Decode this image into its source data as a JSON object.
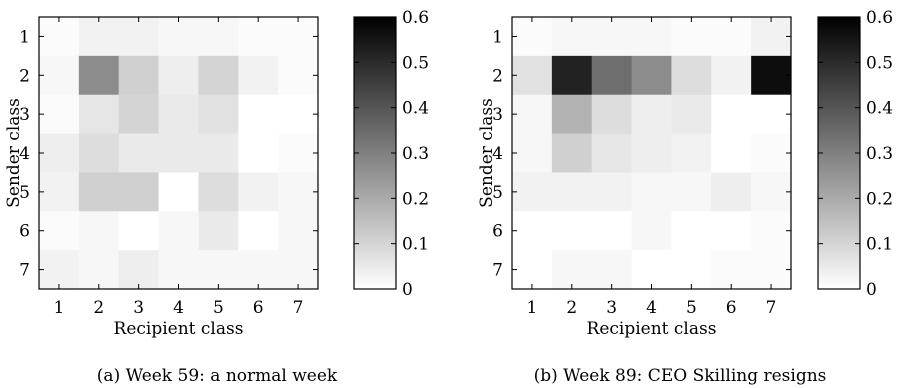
{
  "chart_data": [
    {
      "type": "heatmap",
      "caption": "(a) Week 59: a normal week",
      "xlabel": "Recipient class",
      "ylabel": "Sender class",
      "x": [
        "1",
        "2",
        "3",
        "4",
        "5",
        "6",
        "7"
      ],
      "y": [
        "1",
        "2",
        "3",
        "4",
        "5",
        "6",
        "7"
      ],
      "values": [
        [
          0.01,
          0.03,
          0.03,
          0.02,
          0.02,
          0.01,
          0.01
        ],
        [
          0.02,
          0.27,
          0.11,
          0.04,
          0.1,
          0.03,
          0.01
        ],
        [
          0.01,
          0.06,
          0.1,
          0.05,
          0.07,
          0.0,
          0.0
        ],
        [
          0.04,
          0.08,
          0.05,
          0.05,
          0.05,
          0.0,
          0.01
        ],
        [
          0.03,
          0.11,
          0.11,
          0.0,
          0.08,
          0.03,
          0.02
        ],
        [
          0.01,
          0.02,
          0.0,
          0.02,
          0.05,
          0.0,
          0.02
        ],
        [
          0.03,
          0.02,
          0.04,
          0.02,
          0.02,
          0.02,
          0.02
        ]
      ],
      "colorbar": {
        "min": 0,
        "max": 0.6,
        "ticks": [
          "0",
          "0.1",
          "0.2",
          "0.3",
          "0.4",
          "0.5",
          "0.6"
        ],
        "colormap": "white-to-black"
      }
    },
    {
      "type": "heatmap",
      "caption": "(b) Week 89: CEO Skilling resigns",
      "xlabel": "Recipient class",
      "ylabel": "Sender class",
      "x": [
        "1",
        "2",
        "3",
        "4",
        "5",
        "6",
        "7"
      ],
      "y": [
        "1",
        "2",
        "3",
        "4",
        "5",
        "6",
        "7"
      ],
      "values": [
        [
          0.01,
          0.02,
          0.02,
          0.02,
          0.01,
          0.01,
          0.03
        ],
        [
          0.07,
          0.52,
          0.34,
          0.27,
          0.08,
          0.03,
          0.57
        ],
        [
          0.02,
          0.18,
          0.08,
          0.04,
          0.05,
          0.0,
          0.0
        ],
        [
          0.02,
          0.11,
          0.06,
          0.04,
          0.03,
          0.0,
          0.01
        ],
        [
          0.03,
          0.03,
          0.03,
          0.02,
          0.02,
          0.04,
          0.02
        ],
        [
          0.0,
          0.0,
          0.0,
          0.02,
          0.0,
          0.0,
          0.01
        ],
        [
          0.0,
          0.02,
          0.02,
          0.0,
          0.0,
          0.01,
          0.01
        ]
      ],
      "colorbar": {
        "min": 0,
        "max": 0.6,
        "ticks": [
          "0",
          "0.1",
          "0.2",
          "0.3",
          "0.4",
          "0.5",
          "0.6"
        ],
        "colormap": "white-to-black"
      }
    }
  ]
}
